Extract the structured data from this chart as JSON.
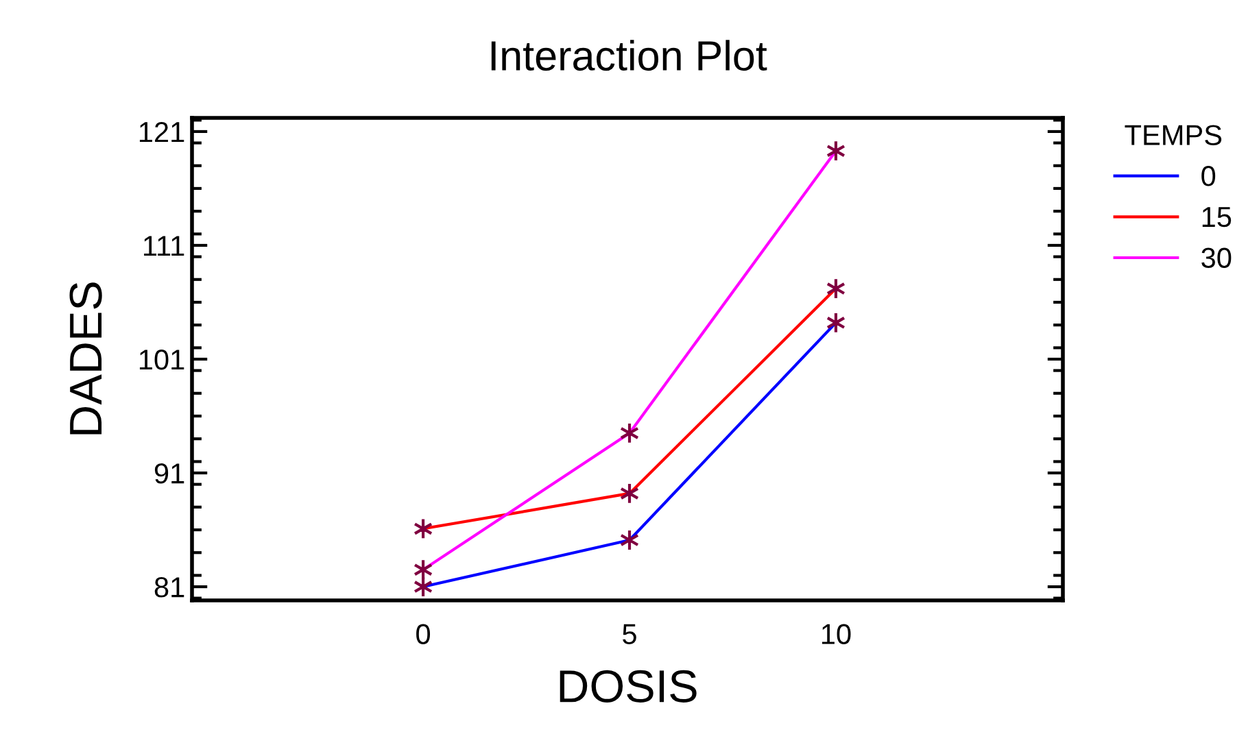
{
  "chart_data": {
    "type": "line",
    "title": "Interaction Plot",
    "xlabel": "DOSIS",
    "ylabel": "DADES",
    "legend_title": "TEMPS",
    "x": [
      0,
      5,
      10
    ],
    "series": [
      {
        "name": "0",
        "color": "#0000ff",
        "values": [
          81.0,
          85.1,
          104.2
        ]
      },
      {
        "name": "15",
        "color": "#ff0000",
        "values": [
          86.1,
          89.2,
          107.2
        ]
      },
      {
        "name": "30",
        "color": "#ff00ff",
        "values": [
          82.5,
          94.5,
          119.3
        ]
      }
    ],
    "xlim": [
      -5.6,
      15.5
    ],
    "xticks": [
      0,
      5,
      10
    ],
    "ylim": [
      79.8,
      122.2
    ],
    "yticks": [
      81,
      91,
      101,
      111,
      121
    ],
    "marker": "cross",
    "legend": "top right",
    "grid": false
  }
}
